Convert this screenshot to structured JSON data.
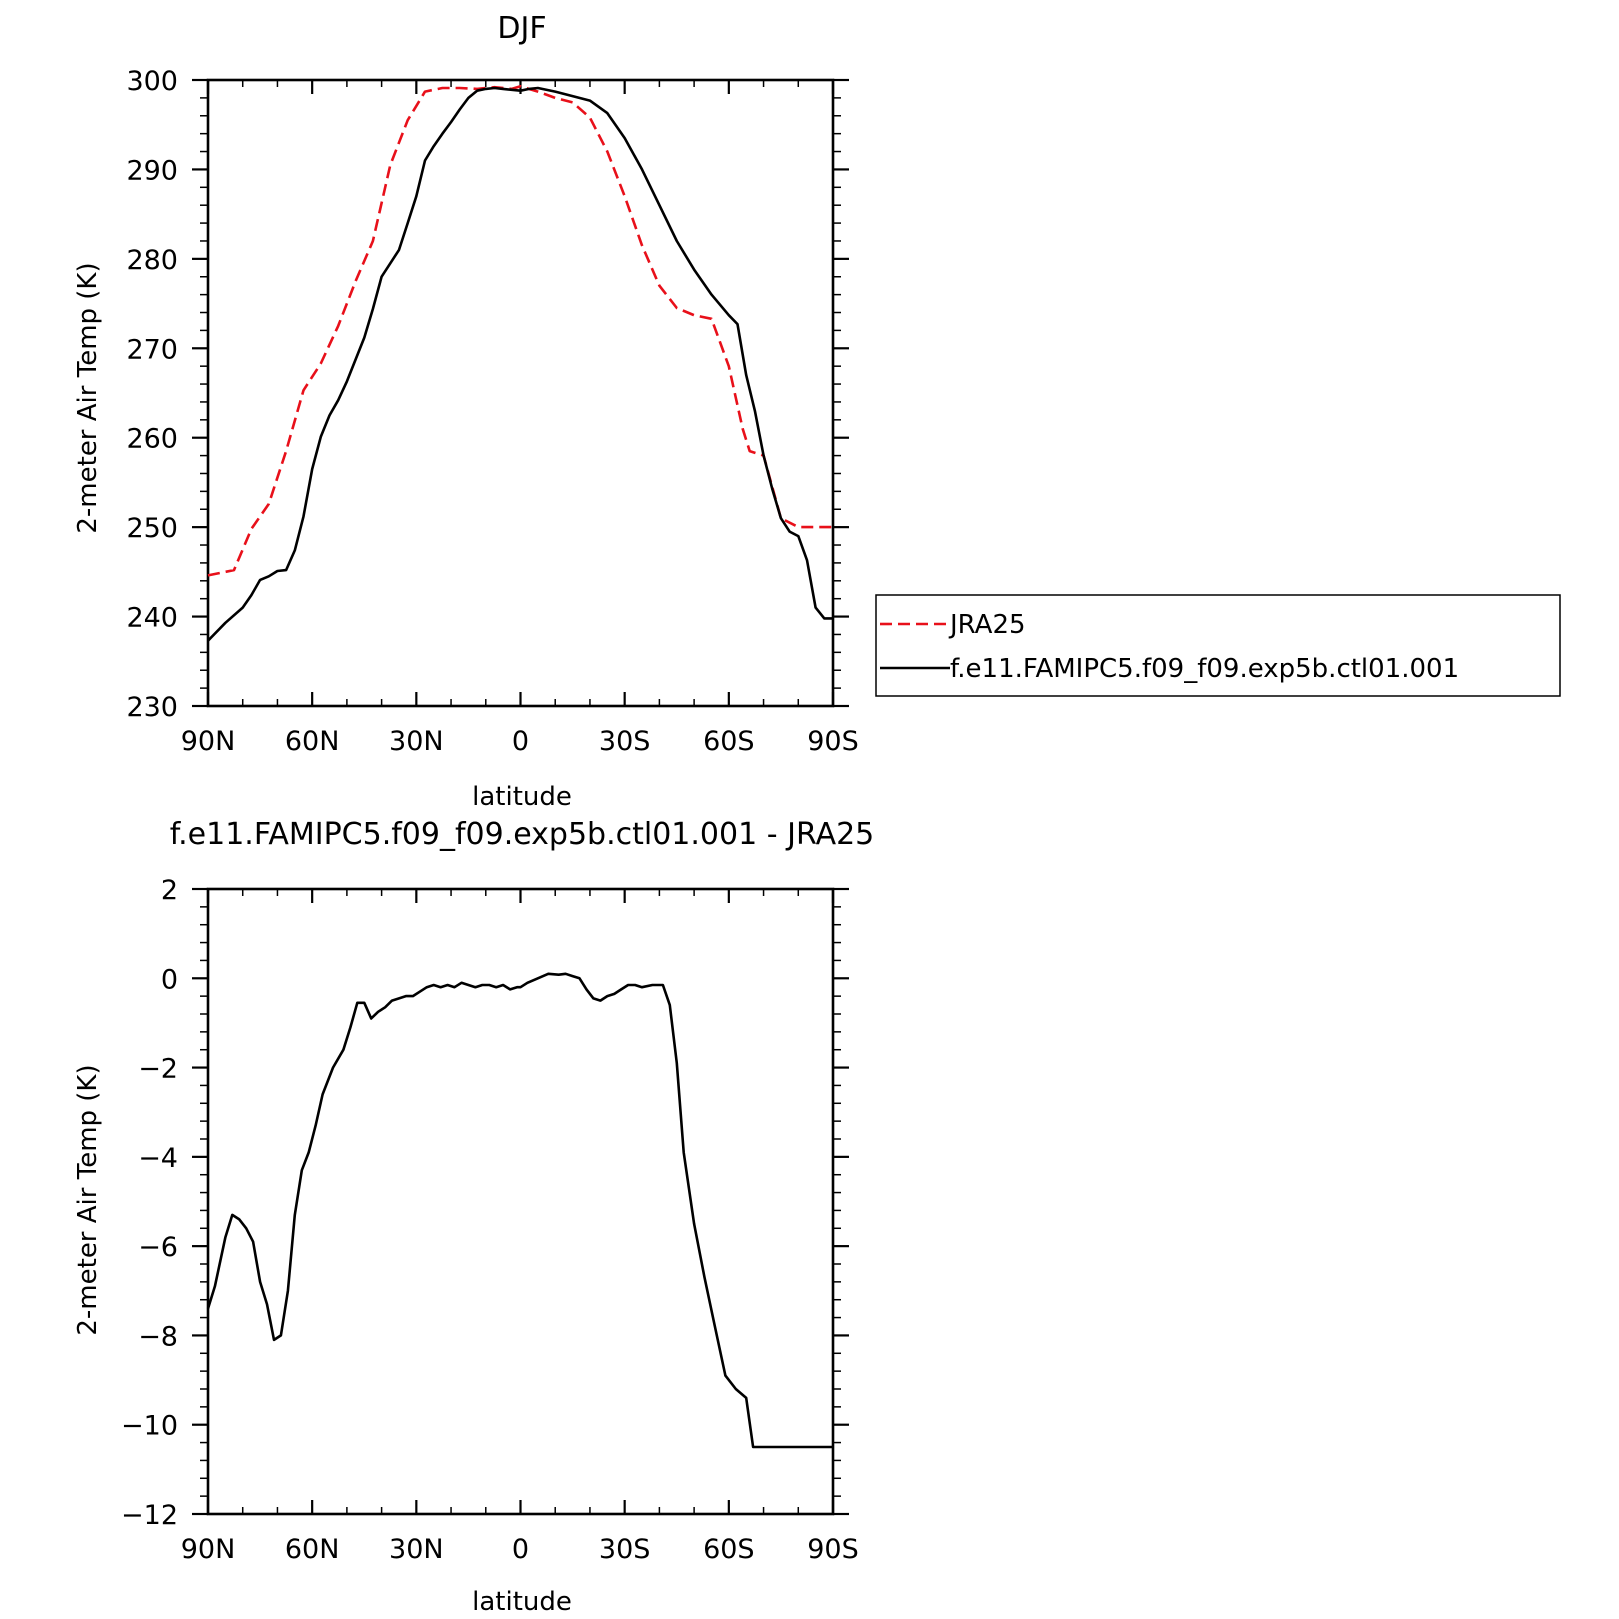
{
  "chart_data": [
    {
      "type": "line",
      "title": "DJF",
      "xlabel": "latitude",
      "ylabel": "2-meter Air Temp (K)",
      "xlim": [
        90,
        -90
      ],
      "ylim": [
        230,
        300
      ],
      "x_ticks": [
        90,
        60,
        30,
        0,
        -30,
        -60,
        -90
      ],
      "x_tick_labels": [
        "90N",
        "60N",
        "30N",
        "0",
        "30S",
        "60S",
        "90S"
      ],
      "y_ticks": [
        230,
        240,
        250,
        260,
        270,
        280,
        290,
        300
      ],
      "y_tick_labels": [
        "230",
        "240",
        "250",
        "260",
        "270",
        "280",
        "290",
        "300"
      ],
      "legend_position": "right",
      "series": [
        {
          "name": "JRA25",
          "color": "#e8101a",
          "dash": "dashed",
          "x": [
            90,
            82.5,
            77.5,
            72.5,
            67.5,
            62.5,
            57.5,
            52.5,
            47.5,
            42.5,
            37.5,
            32.5,
            27.5,
            22.5,
            17.5,
            12.5,
            7.5,
            2.5,
            0,
            -5,
            -10,
            -15,
            -20,
            -25,
            -30,
            -35,
            -40,
            -45,
            -50,
            -55,
            -60,
            -64,
            -66,
            -70,
            -75,
            -80,
            -84,
            -88,
            -90
          ],
          "y": [
            244.6,
            245.2,
            249.8,
            252.6,
            258.5,
            265.3,
            268.3,
            272.5,
            277.5,
            282.0,
            290.5,
            295.5,
            298.7,
            299.1,
            299.1,
            299.0,
            299.2,
            299.0,
            299.3,
            298.7,
            298.0,
            297.5,
            295.8,
            292.0,
            287.0,
            281.5,
            277.0,
            274.5,
            273.7,
            273.3,
            268.0,
            261.0,
            258.5,
            258.0,
            251.0,
            250.0,
            250.0,
            250.0,
            250.0
          ],
          "__x_note": "unused"
        },
        {
          "name": "f.e11.FAMIPC5.f09_f09.exp5b.ctl01.001",
          "color": "#000000",
          "dash": "solid",
          "x": [
            90,
            85,
            80,
            77.5,
            75,
            72.5,
            70,
            67.5,
            65,
            62.5,
            60,
            57.5,
            55,
            52.5,
            50,
            45,
            42.5,
            40,
            37.5,
            35,
            32.5,
            30,
            27.5,
            25,
            22.5,
            20,
            17.5,
            15,
            12.5,
            10,
            7.5,
            5,
            2.5,
            0,
            -2.5,
            -5,
            -10,
            -15,
            -20,
            -25,
            -30,
            -35,
            -40,
            -45,
            -50,
            -55,
            -60,
            -62.5,
            -65,
            -67.5,
            -70,
            -72.5,
            -75,
            -77.5,
            -80,
            -82.5,
            -85,
            -87.5,
            -90
          ],
          "y": [
            237.3,
            239.3,
            241.0,
            242.4,
            244.1,
            244.5,
            245.1,
            245.2,
            247.4,
            251.2,
            256.5,
            260.1,
            262.5,
            264.2,
            266.3,
            271.2,
            274.4,
            278.0,
            279.5,
            281.0,
            284.0,
            287.0,
            291.0,
            292.6,
            294.0,
            295.3,
            296.7,
            298.0,
            298.8,
            299.0,
            299.1,
            299.0,
            298.9,
            298.8,
            299.0,
            299.1,
            298.7,
            298.2,
            297.7,
            296.3,
            293.5,
            290.0,
            286.0,
            282.0,
            278.8,
            276.0,
            273.7,
            272.7,
            267.0,
            263.0,
            258.0,
            254.3,
            251.0,
            249.5,
            249.0,
            246.3,
            241.0,
            239.8,
            239.8
          ]
        }
      ]
    },
    {
      "type": "line",
      "title": "f.e11.FAMIPC5.f09_f09.exp5b.ctl01.001 - JRA25",
      "xlabel": "latitude",
      "ylabel": "2-meter Air Temp (K)",
      "xlim": [
        90,
        -90
      ],
      "ylim": [
        -12,
        2
      ],
      "x_ticks": [
        90,
        60,
        30,
        0,
        -30,
        -60,
        -90
      ],
      "x_tick_labels": [
        "90N",
        "60N",
        "30N",
        "0",
        "30S",
        "60S",
        "90S"
      ],
      "y_ticks": [
        -12,
        -10,
        -8,
        -6,
        -4,
        -2,
        0,
        2
      ],
      "y_tick_labels": [
        "-12",
        "-10",
        "-8",
        "-6",
        "-4",
        "-2",
        "0",
        "2"
      ],
      "series": [
        {
          "color": "#000000",
          "dash": "solid",
          "x": [
            90,
            88,
            85,
            83,
            81,
            79,
            77,
            75,
            73,
            71,
            69,
            67,
            65,
            63,
            61,
            59,
            57,
            54,
            51,
            49,
            47,
            45,
            43,
            41,
            39,
            37,
            35,
            33,
            31,
            29,
            27,
            25,
            23,
            21,
            19,
            17,
            15,
            13,
            11,
            9,
            7,
            5,
            3,
            1,
            0,
            -2,
            -5,
            -8,
            -11,
            -13,
            -15,
            -17,
            -19,
            -21,
            -23,
            -25,
            -27,
            -29,
            -31,
            -33,
            -35,
            -38,
            -41,
            -43,
            -45,
            -47,
            -50,
            -53,
            -56,
            -59,
            -62,
            -65,
            -67,
            -70,
            -72,
            -75,
            -78,
            -80,
            -83,
            -86,
            -88,
            -90
          ],
          "y": [
            -7.4,
            -6.9,
            -5.8,
            -5.3,
            -5.4,
            -5.6,
            -5.9,
            -6.8,
            -7.3,
            -8.1,
            -8.0,
            -7.0,
            -5.3,
            -4.3,
            -3.9,
            -3.3,
            -2.6,
            -2.0,
            -1.6,
            -1.1,
            -0.55,
            -0.55,
            -0.9,
            -0.75,
            -0.65,
            -0.5,
            -0.45,
            -0.4,
            -0.4,
            -0.3,
            -0.2,
            -0.15,
            -0.2,
            -0.15,
            -0.2,
            -0.1,
            -0.15,
            -0.2,
            -0.15,
            -0.15,
            -0.2,
            -0.15,
            -0.25,
            -0.2,
            -0.2,
            -0.1,
            0.0,
            0.1,
            0.08,
            0.1,
            0.05,
            0.0,
            -0.25,
            -0.45,
            -0.5,
            -0.4,
            -0.35,
            -0.25,
            -0.15,
            -0.15,
            -0.2,
            -0.15,
            -0.15,
            -0.6,
            -1.9,
            -3.9,
            -5.5,
            -6.7,
            -7.8,
            -8.9,
            -9.2,
            -9.4,
            -10.5,
            -10.5,
            -10.5,
            -10.5,
            -10.5,
            -10.5,
            -10.5,
            -10.5,
            -10.5,
            -10.5
          ]
        }
      ]
    }
  ]
}
